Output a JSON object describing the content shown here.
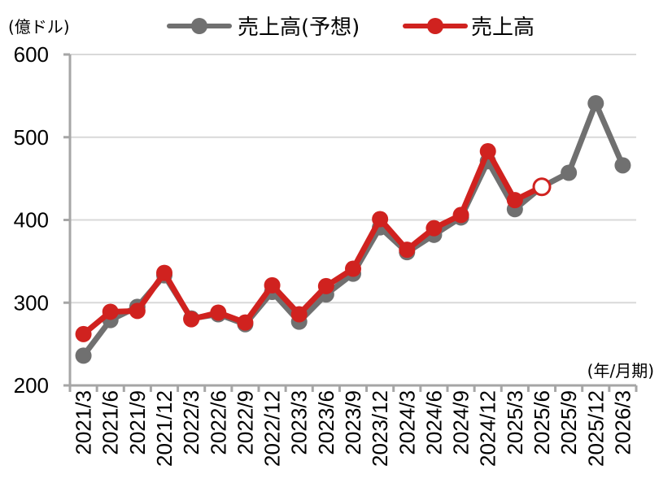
{
  "chart_data": {
    "type": "line",
    "y_unit_label": "(億ドル)",
    "x_unit_label": "(年/月期)",
    "ylim": [
      200,
      600
    ],
    "yticks": [
      200,
      300,
      400,
      500,
      600
    ],
    "grid": true,
    "legend_position": "top-center",
    "categories": [
      "2021/3",
      "2021/6",
      "2021/9",
      "2021/12",
      "2022/3",
      "2022/6",
      "2022/9",
      "2022/12",
      "2023/3",
      "2023/6",
      "2023/9",
      "2023/12",
      "2024/3",
      "2024/6",
      "2024/9",
      "2024/12",
      "2025/3",
      "2025/6",
      "2025/9",
      "2025/12",
      "2026/3"
    ],
    "series": [
      {
        "name": "売上高(予想)",
        "color": "#707070",
        "values": [
          236,
          279,
          295,
          333,
          281,
          286,
          274,
          313,
          277,
          310,
          335,
          391,
          361,
          382,
          403,
          471,
          413,
          440,
          457,
          541,
          466
        ]
      },
      {
        "name": "売上高",
        "color": "#d0221f",
        "values": [
          262,
          289,
          290,
          336,
          280,
          288,
          276,
          321,
          286,
          320,
          341,
          401,
          364,
          390,
          406,
          483,
          424,
          440,
          null,
          null,
          null
        ],
        "open_marker_index": 17
      }
    ]
  }
}
